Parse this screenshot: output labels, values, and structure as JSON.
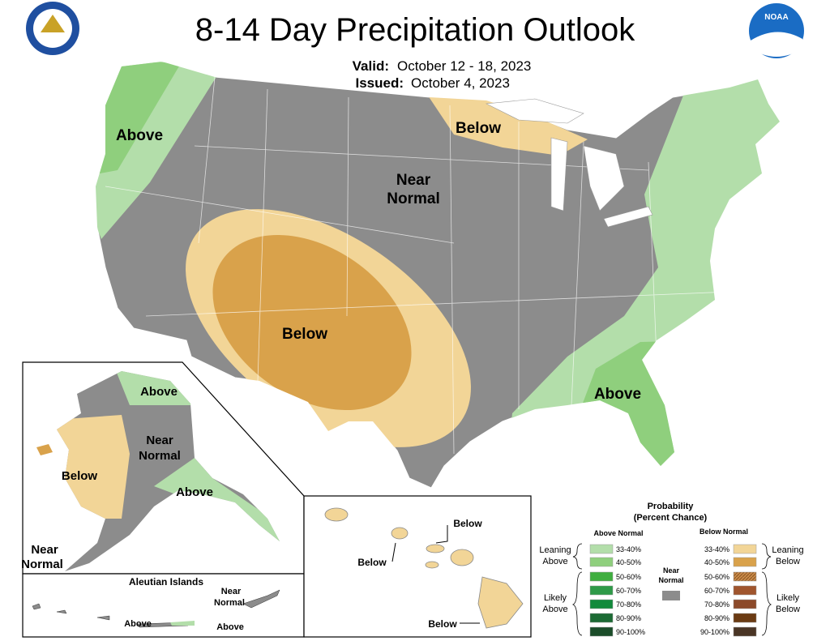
{
  "header": {
    "title": "8-14 Day Precipitation Outlook",
    "valid_label": "Valid:",
    "valid_dates": "October 12 - 18, 2023",
    "issued_label": "Issued:",
    "issued_date": "October 4, 2023",
    "noaa_logo": "NOAA"
  },
  "conus": {
    "west_above": "Above",
    "great_lakes_below": "Below",
    "near_normal": [
      "Near",
      "Normal"
    ],
    "southwest_below": "Below",
    "southeast_above": "Above"
  },
  "alaska": {
    "north_above": "Above",
    "near_normal": [
      "Near",
      "Normal"
    ],
    "west_below": "Below",
    "south_above": "Above",
    "southwest_near_normal": [
      "Near",
      "Normal"
    ]
  },
  "aleutians": {
    "title": "Aleutian Islands",
    "near_normal": [
      "Near",
      "Normal"
    ],
    "above_west": "Above",
    "above_east": "Above"
  },
  "hawaii": {
    "labels": [
      "Below",
      "Below",
      "Below"
    ]
  },
  "legend": {
    "title": [
      "Probability",
      "(Percent Chance)"
    ],
    "above_header": "Above Normal",
    "below_header": "Below Normal",
    "near_normal": [
      "Near",
      "Normal"
    ],
    "leaning_above": [
      "Leaning",
      "Above"
    ],
    "likely_above": [
      "Likely",
      "Above"
    ],
    "leaning_below": [
      "Leaning",
      "Below"
    ],
    "likely_below": [
      "Likely",
      "Below"
    ],
    "above_ranges": [
      "33-40%",
      "40-50%",
      "50-60%",
      "60-70%",
      "70-80%",
      "80-90%",
      "90-100%"
    ],
    "below_ranges": [
      "33-40%",
      "40-50%",
      "50-60%",
      "60-70%",
      "70-80%",
      "80-90%",
      "90-100%"
    ]
  }
}
